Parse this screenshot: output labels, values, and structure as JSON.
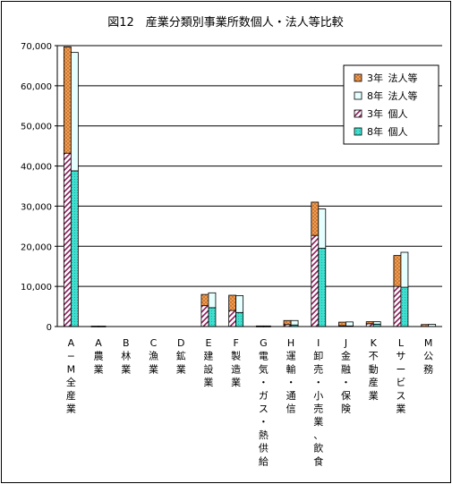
{
  "chart_data": {
    "type": "bar",
    "title": "図12　産業分類別事業所数個人・法人等比較",
    "xlabel": "",
    "ylabel": "",
    "ylim": [
      0,
      70000
    ],
    "yticks": [
      "0",
      "10,000",
      "20,000",
      "30,000",
      "40,000",
      "50,000",
      "60,000",
      "70,000"
    ],
    "grid": true,
    "legend_position": "top-right",
    "stacked": true,
    "categories": [
      "A−M全産業",
      "A農業",
      "B林業",
      "C漁業",
      "D鉱業",
      "E建設業",
      "F製造業",
      "G電気・ガス・熱供給",
      "H運輸・通信",
      "I卸売・小売業、飲食",
      "J金融・保険",
      "K不動産業",
      "Lサービス業",
      "M公務"
    ],
    "series": [
      {
        "name": "3年 法人等",
        "year": "3年",
        "kind": "法人等",
        "color": "#F4A460",
        "pattern": "crosshatch",
        "values": [
          26500,
          50,
          0,
          0,
          0,
          2800,
          3800,
          100,
          1000,
          8300,
          900,
          500,
          7700,
          500
        ]
      },
      {
        "name": "8年 法人等",
        "year": "8年",
        "kind": "法人等",
        "color": "#E6FFFF",
        "pattern": "solid",
        "values": [
          29500,
          50,
          0,
          0,
          0,
          3700,
          4200,
          100,
          1100,
          9800,
          1000,
          600,
          8700,
          550
        ]
      },
      {
        "name": "3年 個人",
        "year": "3年",
        "kind": "個人",
        "color": "#8B1A5A",
        "pattern": "diagonal",
        "values": [
          43200,
          50,
          0,
          0,
          0,
          5200,
          4000,
          50,
          500,
          22700,
          200,
          700,
          10000,
          0
        ]
      },
      {
        "name": "8年 個人",
        "year": "8年",
        "kind": "個人",
        "color": "#40E0D0",
        "pattern": "dots",
        "values": [
          38800,
          50,
          0,
          0,
          0,
          4700,
          3500,
          50,
          400,
          19500,
          150,
          600,
          9800,
          0
        ]
      }
    ]
  }
}
